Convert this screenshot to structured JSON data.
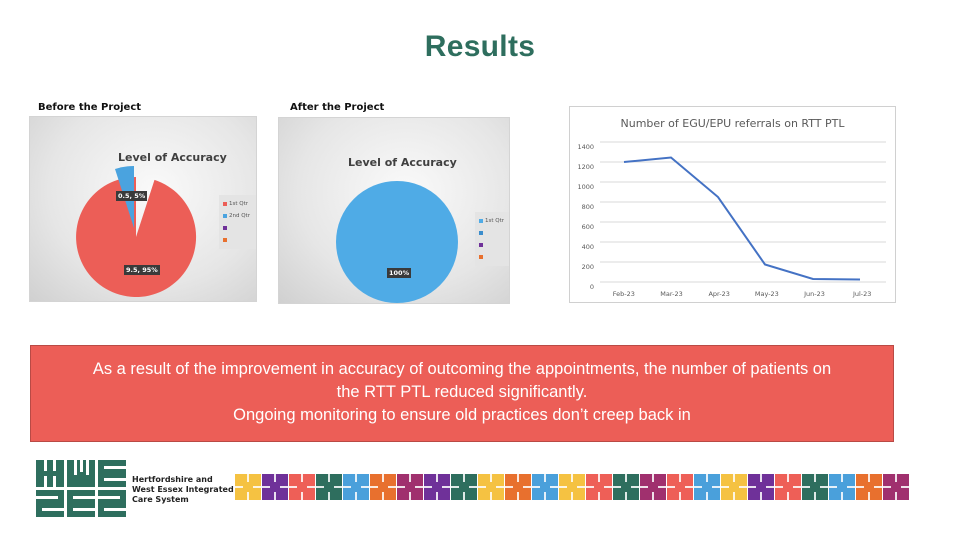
{
  "slide": {
    "title": "Results",
    "title_color": "#2e6e5e"
  },
  "before": {
    "caption": "Before the Project",
    "chart_title": "Level of Accuracy",
    "labels": [
      "0.5, 5%",
      "9.5, 95%"
    ],
    "legend": [
      "1st Qtr",
      "2nd Qtr",
      "",
      ""
    ]
  },
  "after": {
    "caption": "After the Project",
    "chart_title": "Level of Accuracy",
    "labels": [
      "100%"
    ],
    "legend": [
      "1st Qtr",
      "",
      "",
      ""
    ]
  },
  "line": {
    "title": "Number of EGU/EPU referrals on RTT PTL",
    "yticks": [
      "0",
      "200",
      "400",
      "600",
      "800",
      "1000",
      "1200",
      "1400"
    ],
    "xticks": [
      "Feb-23",
      "Mar-23",
      "Apr-23",
      "May-23",
      "Jun-23",
      "Jul-23"
    ]
  },
  "banner": {
    "line1": "As a result of the improvement in accuracy of outcoming the appointments, the number of patients on",
    "line2": "the RTT PTL reduced significantly.",
    "line3": "Ongoing monitoring to ensure old practices don’t creep back in",
    "color": "#ec5e57"
  },
  "logo": {
    "line1": "Hertfordshire and",
    "line2": "West Essex Integrated",
    "line3": "Care System",
    "color": "#2e6e5e"
  },
  "tiles": [
    "#f5c242",
    "#6f3199",
    "#ee5f57",
    "#2e6e5e",
    "#4aa0db",
    "#e8702e",
    "#a0306e",
    "#6f3199",
    "#2e6e5e",
    "#f5c242",
    "#e8702e",
    "#4aa0db",
    "#f5c242",
    "#ee5f57",
    "#2e6e5e",
    "#a0306e",
    "#ee5f57",
    "#4aa0db",
    "#f5c242",
    "#6f3199",
    "#ee5f57",
    "#2e6e5e",
    "#4aa0db",
    "#e8702e",
    "#a0306e"
  ],
  "chart_data": [
    {
      "type": "pie",
      "title": "Level of Accuracy (Before the Project)",
      "categories": [
        "1st Qtr",
        "2nd Qtr"
      ],
      "values": [
        9.5,
        0.5
      ],
      "percentages": [
        95,
        5
      ],
      "colors": [
        "#ec5e57",
        "#4aa3df"
      ],
      "legend_position": "right"
    },
    {
      "type": "pie",
      "title": "Level of Accuracy (After the Project)",
      "categories": [
        "1st Qtr"
      ],
      "values": [
        100
      ],
      "percentages": [
        100
      ],
      "colors": [
        "#4fabe6"
      ],
      "legend_position": "right"
    },
    {
      "type": "line",
      "title": "Number of EGU/EPU referrals on RTT PTL",
      "categories": [
        "Feb-23",
        "Mar-23",
        "Apr-23",
        "May-23",
        "Jun-23",
        "Jul-23"
      ],
      "values": [
        1200,
        1245,
        850,
        175,
        30,
        25
      ],
      "xlabel": "",
      "ylabel": "",
      "ylim": [
        0,
        1400
      ],
      "yticks": [
        0,
        200,
        400,
        600,
        800,
        1000,
        1200,
        1400
      ],
      "grid": true,
      "line_color": "#4472c4"
    }
  ]
}
